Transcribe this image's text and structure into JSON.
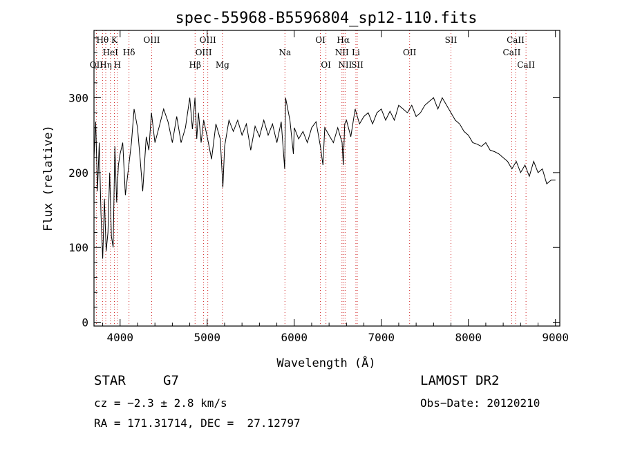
{
  "chart_data": {
    "type": "line",
    "title": "spec-55968-B5596804_sp12-110.fits",
    "xlabel": "Wavelength (Å)",
    "ylabel": "Flux (relative)",
    "xlim": [
      3700,
      9050
    ],
    "ylim": [
      -5,
      390
    ],
    "xticks": [
      "4000",
      "5000",
      "6000",
      "7000",
      "8000",
      "9000"
    ],
    "yticks": [
      "0",
      "100",
      "200",
      "300"
    ],
    "grid": false,
    "legend": "none",
    "line_color": "#000000",
    "marker_color": "#d02020",
    "series": [
      {
        "x": [
          3700,
          3720,
          3740,
          3760,
          3780,
          3800,
          3820,
          3840,
          3860,
          3880,
          3900,
          3920,
          3940,
          3960,
          3980,
          4000,
          4030,
          4060,
          4100,
          4130,
          4160,
          4200,
          4230,
          4260,
          4300,
          4330,
          4360,
          4400,
          4450,
          4500,
          4550,
          4600,
          4650,
          4700,
          4750,
          4800,
          4830,
          4860,
          4880,
          4900,
          4930,
          4960,
          5000,
          5050,
          5100,
          5150,
          5180,
          5200,
          5250,
          5300,
          5350,
          5400,
          5450,
          5500,
          5550,
          5600,
          5650,
          5700,
          5750,
          5800,
          5850,
          5890,
          5900,
          5950,
          5990,
          6000,
          6050,
          6100,
          6150,
          6200,
          6250,
          6300,
          6330,
          6350,
          6400,
          6450,
          6500,
          6550,
          6563,
          6580,
          6600,
          6650,
          6700,
          6750,
          6800,
          6850,
          6900,
          6950,
          7000,
          7050,
          7100,
          7150,
          7200,
          7250,
          7300,
          7350,
          7400,
          7450,
          7500,
          7550,
          7600,
          7650,
          7700,
          7750,
          7800,
          7850,
          7900,
          7950,
          8000,
          8050,
          8100,
          8150,
          8200,
          8250,
          8300,
          8350,
          8400,
          8450,
          8500,
          8550,
          8600,
          8650,
          8700,
          8750,
          8800,
          8850,
          8900,
          8950,
          9000
        ],
        "y": [
          220,
          268,
          175,
          240,
          145,
          85,
          165,
          95,
          120,
          200,
          115,
          100,
          235,
          160,
          210,
          225,
          240,
          170,
          210,
          240,
          285,
          260,
          218,
          175,
          248,
          230,
          280,
          240,
          262,
          285,
          268,
          240,
          275,
          240,
          260,
          300,
          258,
          300,
          245,
          280,
          240,
          270,
          248,
          218,
          265,
          245,
          180,
          235,
          270,
          255,
          270,
          250,
          265,
          230,
          262,
          248,
          270,
          250,
          265,
          240,
          268,
          205,
          300,
          270,
          225,
          260,
          245,
          255,
          240,
          260,
          268,
          235,
          210,
          260,
          250,
          240,
          260,
          240,
          210,
          265,
          270,
          248,
          285,
          265,
          275,
          280,
          265,
          280,
          285,
          270,
          282,
          270,
          290,
          285,
          280,
          290,
          275,
          280,
          290,
          295,
          300,
          285,
          300,
          290,
          280,
          270,
          265,
          255,
          250,
          240,
          238,
          235,
          240,
          230,
          228,
          225,
          220,
          215,
          205,
          215,
          200,
          210,
          195,
          215,
          200,
          205,
          185,
          190,
          190
        ]
      }
    ],
    "lines": [
      {
        "label": "Hθ",
        "x": 3798,
        "row": 0
      },
      {
        "label": "K",
        "x": 3934,
        "row": 0
      },
      {
        "label": "HeI",
        "x": 3889,
        "row": 1
      },
      {
        "label": "Hδ",
        "x": 4102,
        "row": 1
      },
      {
        "label": "OII",
        "x": 3727,
        "row": 2
      },
      {
        "label": "Hη",
        "x": 3835,
        "row": 2
      },
      {
        "label": "H",
        "x": 3969,
        "row": 2
      },
      {
        "label": "OIII",
        "x": 4363,
        "row": 0
      },
      {
        "label": "OIII",
        "x": 5007,
        "row": 0
      },
      {
        "label": "OIII",
        "x": 4959,
        "row": 1
      },
      {
        "label": "Hβ",
        "x": 4861,
        "row": 2
      },
      {
        "label": "Mg",
        "x": 5175,
        "row": 2
      },
      {
        "label": "Na",
        "x": 5893,
        "row": 1
      },
      {
        "label": "OI",
        "x": 6300,
        "row": 0
      },
      {
        "label": "OI",
        "x": 6364,
        "row": 2
      },
      {
        "label": "Hα",
        "x": 6563,
        "row": 0
      },
      {
        "label": "NII",
        "x": 6548,
        "row": 1
      },
      {
        "label": "NII",
        "x": 6584,
        "row": 2
      },
      {
        "label": "Li",
        "x": 6708,
        "row": 1
      },
      {
        "label": "SII",
        "x": 6724,
        "row": 2
      },
      {
        "label": "OII",
        "x": 7325,
        "row": 1
      },
      {
        "label": "SII",
        "x": 7800,
        "row": 0
      },
      {
        "label": "CaII",
        "x": 8542,
        "row": 0
      },
      {
        "label": "CaII",
        "x": 8498,
        "row": 1
      },
      {
        "label": "CaII",
        "x": 8662,
        "row": 2
      }
    ]
  },
  "footer": {
    "object_class": "STAR",
    "subclass": "G7",
    "survey": "LAMOST DR2",
    "cz": "cz = −2.3 ± 2.8 km/s",
    "obs_date": "Obs−Date: 20120210",
    "coords": "RA = 171.31714, DEC =  27.12797"
  }
}
